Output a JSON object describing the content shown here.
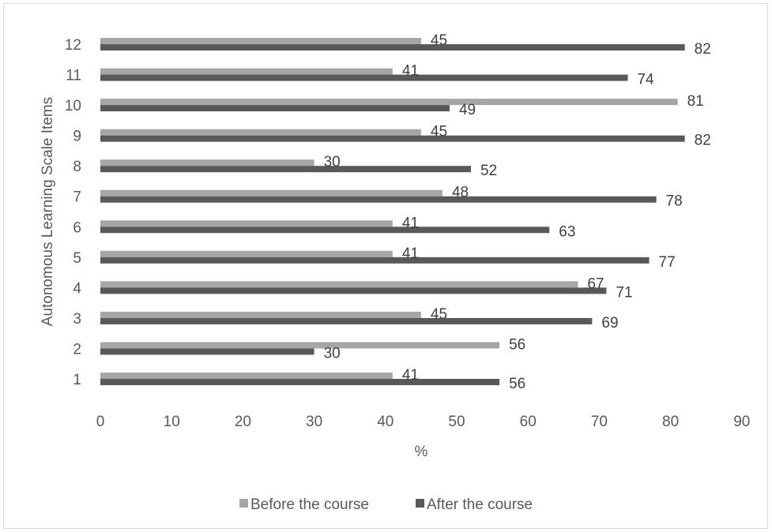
{
  "chart_data": {
    "type": "bar",
    "orientation": "horizontal",
    "categories": [
      "1",
      "2",
      "3",
      "4",
      "5",
      "6",
      "7",
      "8",
      "9",
      "10",
      "11",
      "12"
    ],
    "series": [
      {
        "name": "Before the course",
        "color": "#a6a6a6",
        "values": [
          41,
          56,
          45,
          67,
          41,
          41,
          48,
          30,
          45,
          81,
          41,
          45
        ]
      },
      {
        "name": "After the course",
        "color": "#595959",
        "values": [
          56,
          30,
          69,
          71,
          77,
          63,
          78,
          52,
          82,
          49,
          74,
          82
        ]
      }
    ],
    "xlabel": "%",
    "ylabel": "Autonomous Learning Scale Items",
    "xlim": [
      0,
      90
    ],
    "xticks": [
      0,
      10,
      20,
      30,
      40,
      50,
      60,
      70,
      80,
      90
    ],
    "grid": false,
    "legend_position": "bottom",
    "data_labels": true
  }
}
